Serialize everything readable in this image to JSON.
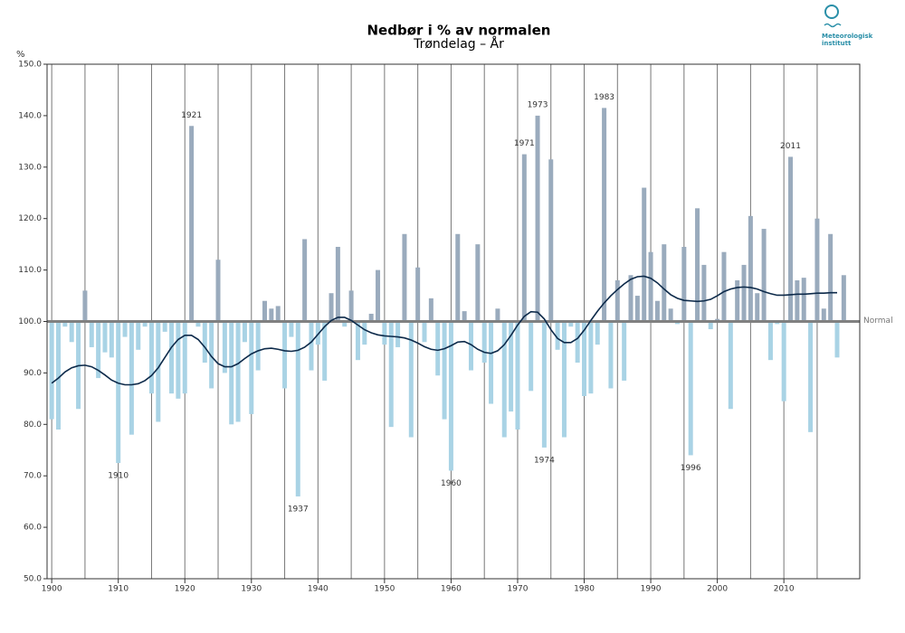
{
  "chart_data": {
    "type": "bar",
    "title": "Nedbør i % av normalen",
    "subtitle": "Trøndelag – År",
    "ylabel": "%",
    "logo_text": [
      "Meteorologisk",
      "institutt"
    ],
    "baseline": 100,
    "baseline_label": "Normal",
    "x": [
      1900,
      1901,
      1902,
      1903,
      1904,
      1905,
      1906,
      1907,
      1908,
      1909,
      1910,
      1911,
      1912,
      1913,
      1914,
      1915,
      1916,
      1917,
      1918,
      1919,
      1920,
      1921,
      1922,
      1923,
      1924,
      1925,
      1926,
      1927,
      1928,
      1929,
      1930,
      1931,
      1932,
      1933,
      1934,
      1935,
      1936,
      1937,
      1938,
      1939,
      1940,
      1941,
      1942,
      1943,
      1944,
      1945,
      1946,
      1947,
      1948,
      1949,
      1950,
      1951,
      1952,
      1953,
      1954,
      1955,
      1956,
      1957,
      1958,
      1959,
      1960,
      1961,
      1962,
      1963,
      1964,
      1965,
      1966,
      1967,
      1968,
      1969,
      1970,
      1971,
      1972,
      1973,
      1974,
      1975,
      1976,
      1977,
      1978,
      1979,
      1980,
      1981,
      1982,
      1983,
      1984,
      1985,
      1986,
      1987,
      1988,
      1989,
      1990,
      1991,
      1992,
      1993,
      1994,
      1995,
      1996,
      1997,
      1998,
      1999,
      2000,
      2001,
      2002,
      2003,
      2004,
      2005,
      2006,
      2007,
      2008,
      2009,
      2010,
      2011,
      2012,
      2013,
      2014,
      2015,
      2016,
      2017,
      2018,
      2019
    ],
    "series": [
      {
        "type": "bar",
        "color_above": "#9aabbd",
        "color_below": "#a9d3e5",
        "values": [
          81,
          79,
          99,
          96,
          83,
          106,
          95,
          89,
          94,
          93,
          72.5,
          97,
          78,
          94.5,
          99,
          86,
          80.5,
          98,
          86,
          85,
          86,
          138,
          99,
          92,
          87,
          112,
          90,
          80,
          80.5,
          96,
          82,
          90.5,
          104,
          102.5,
          103,
          87,
          97,
          66,
          116,
          90.5,
          95.5,
          88.5,
          105.5,
          114.5,
          99,
          106,
          92.5,
          95.5,
          101.5,
          110,
          95.5,
          79.5,
          95,
          117,
          77.5,
          110.5,
          96,
          104.5,
          89.5,
          81,
          71,
          117,
          102,
          90.5,
          115,
          92,
          84,
          102.5,
          77.5,
          82.5,
          79,
          132.5,
          86.5,
          140,
          75.5,
          131.5,
          94.5,
          77.5,
          99,
          92,
          85.5,
          86,
          95.5,
          141.5,
          87,
          108,
          88.5,
          109,
          105,
          126,
          113.5,
          104,
          115,
          102.5,
          99.5,
          114.5,
          74,
          122,
          111,
          98.5,
          100.5,
          113.5,
          83,
          108,
          111,
          120.5,
          105.5,
          118,
          92.5,
          99.5,
          84.5,
          132,
          108,
          108.5,
          78.5,
          120,
          102.5,
          117,
          93,
          109
        ]
      },
      {
        "type": "line",
        "color": "#0d2a4a",
        "values": [
          88,
          89,
          90.2,
          91,
          91.4,
          91.5,
          91.2,
          90.5,
          89.6,
          88.6,
          88,
          87.7,
          87.7,
          87.9,
          88.5,
          89.5,
          91,
          93,
          95,
          96.5,
          97.3,
          97.3,
          96.5,
          95,
          93.2,
          91.8,
          91.2,
          91.2,
          91.8,
          92.8,
          93.7,
          94.3,
          94.7,
          94.8,
          94.6,
          94.3,
          94.2,
          94.4,
          95,
          96,
          97.5,
          99,
          100.2,
          100.8,
          100.8,
          100.2,
          99.3,
          98.4,
          97.8,
          97.4,
          97.2,
          97.1,
          97,
          96.8,
          96.4,
          95.8,
          95.1,
          94.6,
          94.4,
          94.7,
          95.3,
          96,
          96.1,
          95.5,
          94.6,
          94,
          93.8,
          94.3,
          95.5,
          97.3,
          99.3,
          101,
          101.9,
          101.8,
          100.5,
          98.4,
          96.7,
          95.9,
          95.9,
          96.7,
          98.3,
          100.2,
          102,
          103.6,
          105,
          106.2,
          107.3,
          108.2,
          108.7,
          108.8,
          108.4,
          107.5,
          106.3,
          105.2,
          104.5,
          104.1,
          104,
          103.9,
          104,
          104.3,
          105,
          105.8,
          106.3,
          106.6,
          106.7,
          106.6,
          106.3,
          105.8,
          105.4,
          105.1,
          105.1,
          105.2,
          105.3,
          105.3,
          105.4,
          105.5,
          105.5,
          105.6,
          105.6,
          null
        ]
      }
    ],
    "annotations": [
      {
        "text": "1910",
        "x": 1910
      },
      {
        "text": "1921",
        "x": 1921
      },
      {
        "text": "1937",
        "x": 1937
      },
      {
        "text": "1960",
        "x": 1960
      },
      {
        "text": "1971",
        "x": 1971
      },
      {
        "text": "1973",
        "x": 1973
      },
      {
        "text": "1974",
        "x": 1974
      },
      {
        "text": "1983",
        "x": 1983
      },
      {
        "text": "1996",
        "x": 1996
      },
      {
        "text": "2011",
        "x": 2011
      }
    ],
    "xlim": [
      1899.3,
      2021.4
    ],
    "xticks": [
      1900,
      1910,
      1920,
      1930,
      1940,
      1950,
      1960,
      1970,
      1980,
      1990,
      2000,
      2010
    ],
    "xgrid": [
      1900,
      1905,
      1910,
      1915,
      1920,
      1925,
      1930,
      1935,
      1940,
      1945,
      1950,
      1955,
      1960,
      1965,
      1970,
      1975,
      1980,
      1985,
      1990,
      1995,
      2000,
      2005,
      2010,
      2015
    ],
    "ylim": [
      50,
      150
    ],
    "yticks": [
      {
        "value": 50,
        "label": "50.0"
      },
      {
        "value": 60,
        "label": "60.0"
      },
      {
        "value": 70,
        "label": "70.0"
      },
      {
        "value": 80,
        "label": "80.0"
      },
      {
        "value": 90,
        "label": "90.0"
      },
      {
        "value": 100,
        "label": "100.0"
      },
      {
        "value": 110,
        "label": "110.0"
      },
      {
        "value": 120,
        "label": "120.0"
      },
      {
        "value": 130,
        "label": "130.0"
      },
      {
        "value": 140,
        "label": "140.0"
      },
      {
        "value": 150,
        "label": "150.0"
      }
    ]
  }
}
